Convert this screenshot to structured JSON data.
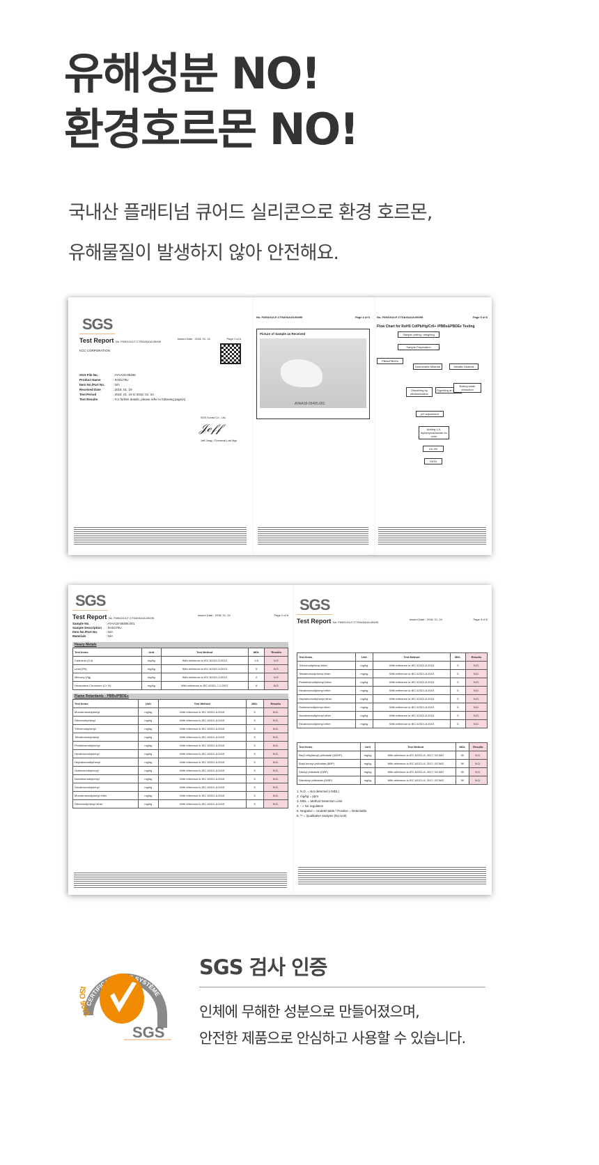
{
  "headline": [
    "유해성분 NO!",
    "환경호르몬 NO!"
  ],
  "subtitle": [
    "국내산 플래티넘 큐어드 실리콘으로 환경 호르몬,",
    "유해물질이 발생하지 않아 안전해요."
  ],
  "docs": {
    "logo": "SGS",
    "report_title": "Test Report",
    "report_no": "No. F690101/LF-CTSAYAA18-05495",
    "issued": "Issued Date : 2018. 01. 24",
    "page1": {
      "page": "Page 1 of 6",
      "company": "KCC CORPORATION",
      "fields": [
        [
          "SGS File No.",
          ": AYAA18-05495"
        ],
        [
          "Product Name",
          ": SHS170U"
        ],
        [
          "Item No./Part No.",
          ": N/A"
        ],
        [
          "Received Date",
          ": 2018. 01. 19"
        ],
        [
          "Test Period",
          ": 2018. 01. 19 to 2018. 01. 24"
        ],
        [
          "Test Results",
          ": For further details, please refer to following page(s)"
        ]
      ],
      "signer": "SGS Korea Co., Ltd.",
      "sign_name": "Jeff Jang / Chemical Lab Mgr"
    },
    "page4": {
      "page": "Page 4 of 6",
      "photo_title": "Picture of Sample as Received",
      "sample_id": "AYAA18-05495.001"
    },
    "page5": {
      "page": "Page 5 of 6",
      "chart_title": "Flow Chart for RoHS Cd/Pb/Hg/Cr6+ /PBBs&PBDEs Testing",
      "boxes": [
        "Sample cutting / weighing",
        "Sample Preparation",
        "PBBs/PBDEs",
        "Nonmetallic Material",
        "Metallic Material",
        "Dissolving by ultrasonication",
        "Digesting at 140°C",
        "Boiling water extraction",
        "pH adjustment",
        "Adding 1,5-diphenylcarbazide for color",
        "UV-Vis",
        "DATA"
      ]
    },
    "page2": {
      "page": "Page 2 of 6",
      "fields": [
        [
          "Sample No.",
          ": AYAA18-05495.001"
        ],
        [
          "Sample Description",
          ": SHS170U"
        ],
        [
          "Item No./Part No.",
          ": N/A"
        ],
        [
          "Materials",
          ": N/A"
        ]
      ],
      "heavy_title": "Heavy Metals",
      "flame_title": "Flame Retardants - PBBs/PBDEs",
      "headers": [
        "Test Items",
        "Unit",
        "Test Method",
        "MDL",
        "Results"
      ],
      "heavy": [
        [
          "Cadmium (Cd)",
          "mg/kg",
          "With reference to IEC 62321-5:2013",
          "0.5",
          "N.D."
        ],
        [
          "Lead (Pb)",
          "mg/kg",
          "With reference to IEC 62321-5:2013",
          "5",
          "N.D."
        ],
        [
          "Mercury (Hg)",
          "mg/kg",
          "With reference to IEC 62321-4:2013",
          "2",
          "N.D."
        ],
        [
          "Hexavalent Chromium (Cr VI)",
          "mg/kg",
          "With reference to IEC 62321-7-2:2017",
          "8",
          "N.D."
        ]
      ],
      "flame": [
        [
          "Monobromobiphenyl",
          "mg/kg",
          "With reference to IEC 62321-6:2015",
          "5",
          "N.D."
        ],
        [
          "Dibromobiphenyl",
          "mg/kg",
          "With reference to IEC 62321-6:2015",
          "5",
          "N.D."
        ],
        [
          "Tribromobiphenyl",
          "mg/kg",
          "With reference to IEC 62321-6:2015",
          "5",
          "N.D."
        ],
        [
          "Tetrabromobiphenyl",
          "mg/kg",
          "With reference to IEC 62321-6:2015",
          "5",
          "N.D."
        ],
        [
          "Pentabromobiphenyl",
          "mg/kg",
          "With reference to IEC 62321-6:2015",
          "5",
          "N.D."
        ],
        [
          "Hexabromobiphenyl",
          "mg/kg",
          "With reference to IEC 62321-6:2015",
          "5",
          "N.D."
        ],
        [
          "Heptabromobiphenyl",
          "mg/kg",
          "With reference to IEC 62321-6:2015",
          "5",
          "N.D."
        ],
        [
          "Octabromobiphenyl",
          "mg/kg",
          "With reference to IEC 62321-6:2015",
          "5",
          "N.D."
        ],
        [
          "Nonabromobiphenyl",
          "mg/kg",
          "With reference to IEC 62321-6:2015",
          "5",
          "N.D."
        ],
        [
          "Decabromobiphenyl",
          "mg/kg",
          "With reference to IEC 62321-6:2015",
          "5",
          "N.D."
        ],
        [
          "Monobromodiphenyl ether",
          "mg/kg",
          "With reference to IEC 62321-6:2015",
          "5",
          "N.D."
        ],
        [
          "Dibromodiphenyl ether",
          "mg/kg",
          "With reference to IEC 62321-6:2015",
          "5",
          "N.D."
        ]
      ]
    },
    "page3": {
      "page": "Page 3 of 6",
      "rows": [
        [
          "Tribromodiphenyl ether",
          "mg/kg",
          "With reference to IEC 62321-6:2015",
          "5",
          "N.D."
        ],
        [
          "Tetrabromodiphenyl ether",
          "mg/kg",
          "With reference to IEC 62321-6:2015",
          "5",
          "N.D."
        ],
        [
          "Pentabromodiphenyl ether",
          "mg/kg",
          "With reference to IEC 62321-6:2015",
          "5",
          "N.D."
        ],
        [
          "Hexabromodiphenyl ether",
          "mg/kg",
          "With reference to IEC 62321-6:2015",
          "5",
          "N.D."
        ],
        [
          "Heptabromodiphenyl ether",
          "mg/kg",
          "With reference to IEC 62321-6:2015",
          "5",
          "N.D."
        ],
        [
          "Octabromodiphenyl ether",
          "mg/kg",
          "With reference to IEC 62321-6:2015",
          "5",
          "N.D."
        ],
        [
          "Nonabromodiphenyl ether",
          "mg/kg",
          "With reference to IEC 62321-6:2015",
          "5",
          "N.D."
        ],
        [
          "Decabromodiphenyl ether",
          "mg/kg",
          "With reference to IEC 62321-6:2015",
          "5",
          "N.D."
        ]
      ],
      "phthalates": [
        [
          "Bis(2-ethylhexyl) phthalate (DEHP)",
          "mg/kg",
          "With reference to IEC 62321-8, 2017, GC/MS",
          "50",
          "N.D."
        ],
        [
          "Butyl benzyl phthalate (BBP)",
          "mg/kg",
          "With reference to IEC 62321-8, 2017, GC/MS",
          "50",
          "N.D."
        ],
        [
          "Dibutyl phthalate (DBP)",
          "mg/kg",
          "With reference to IEC 62321-8, 2017, GC/MS",
          "50",
          "N.D."
        ],
        [
          "Diisobutyl phthalate (DIBP)",
          "mg/kg",
          "With reference to IEC 62321-8, 2017, GC/MS",
          "50",
          "N.D."
        ]
      ],
      "notes": [
        "1. N.D. = Not detected (<MDL)",
        "2. mg/kg = ppm",
        "3. MDL = Method Detection Limit",
        "4. - = No regulation",
        "5. Negative = Undetectable / Positive = Detectable",
        "6. ** = Qualitative analysis (No Unit)"
      ]
    }
  },
  "cert": {
    "logo_ring": "CERTIFICATION DE SYSTÈME",
    "logo_iso": "ISO 9001",
    "logo_brand": "SGS",
    "title": "SGS 검사 인증",
    "body": [
      "인체에 무해한 성분으로 만들어졌으며,",
      "안전한 제품으로 안심하고 사용할 수 있습니다."
    ],
    "orange": "#f08a00",
    "gray": "#8a8a8a"
  }
}
